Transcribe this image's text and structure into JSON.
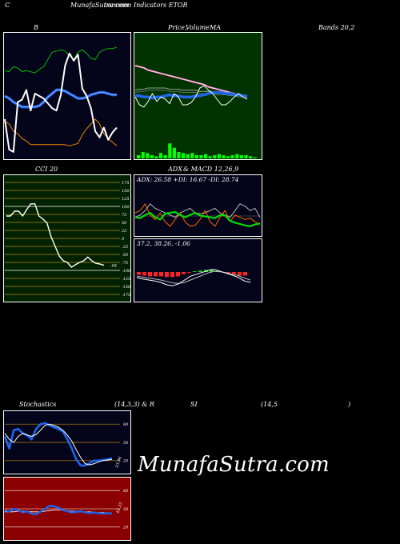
{
  "header": {
    "c_label": "C",
    "site_title": "MunafaSutra.com",
    "subtitle_overlap": "common Indicators ETOR"
  },
  "labels": {
    "bollinger_b": "B",
    "bollinger_bands": "Bands 20,2",
    "price_title_a": "Price,",
    "price_title_b": "Volume",
    "price_title_c": "MA",
    "cci": "CCI 20",
    "adx": "ADX",
    "macd": "& MACD 12,26,9",
    "stoch": "Stochastics",
    "stoch_params": "(14,3,3) & R",
    "rsi": "SI",
    "rsi_params": "(14,5",
    "rsi_close": ")"
  },
  "adx_readout": "ADX: 26.58  +DI: 16.67 -DI: 28.74",
  "macd_readout": "37.2,  38.26,  -1.06",
  "cci_last": "-84",
  "stoch_last": "23.96",
  "rsi_last": "42.25",
  "watermark": "MunafaSutra.com",
  "colors": {
    "panel_dark": "#04041a",
    "price_bg": "#003300",
    "cci_bg": "#002200",
    "rsi_bg": "#8b0000",
    "band_upper": "#00bb00",
    "band_lower": "#ee8800",
    "price_line": "#ffffff",
    "ma_blue": "#1e66ee",
    "volume": "#00ff00",
    "ma_pink": "#ff88cc",
    "adx_green": "#00dd00",
    "di_orange": "#ff6600"
  },
  "chart_data": [
    {
      "type": "line",
      "name_ref": "bollinger",
      "series": [
        {
          "key": "upper",
          "values": [
            71,
            70,
            74,
            73,
            70,
            71,
            70,
            69,
            72,
            74,
            80,
            86,
            87,
            88,
            87,
            83,
            80,
            86,
            88,
            85,
            81,
            80,
            86,
            88,
            89,
            89,
            90
          ]
        },
        {
          "key": "mid",
          "values": [
            50,
            48,
            45,
            43,
            41,
            41,
            41,
            41,
            42,
            45,
            49,
            52,
            55,
            55,
            54,
            52,
            50,
            48,
            48,
            49,
            51,
            52,
            53,
            53,
            52,
            51,
            51
          ]
        },
        {
          "key": "lower",
          "values": [
            29,
            27,
            21,
            19,
            15,
            13,
            10,
            10,
            10,
            10,
            10,
            10,
            10,
            10,
            10,
            9,
            10,
            11,
            18,
            23,
            27,
            31,
            27,
            19,
            15,
            12,
            9
          ]
        },
        {
          "key": "price",
          "values": [
            31,
            6,
            4,
            45,
            47,
            55,
            38,
            52,
            50,
            48,
            44,
            40,
            38,
            51,
            75,
            85,
            79,
            84,
            56,
            50,
            40,
            21,
            16,
            24,
            14,
            20,
            24
          ]
        }
      ],
      "ylim": [
        0,
        100
      ]
    },
    {
      "type": "line",
      "name_ref": "price_volume_ma",
      "series": [
        {
          "key": "pink_ma",
          "values": [
            70,
            69,
            68,
            66,
            65,
            64,
            63,
            62,
            61,
            60,
            59,
            58,
            57,
            56,
            55,
            54,
            53,
            51,
            50,
            49,
            48,
            47,
            46,
            45,
            44,
            43,
            42
          ]
        },
        {
          "key": "ma_grey",
          "values": [
            48,
            49,
            49,
            50,
            50,
            50,
            50,
            50,
            49,
            49,
            49,
            48,
            48,
            48,
            48,
            47,
            47,
            47,
            47,
            46,
            46,
            46,
            45,
            45,
            44,
            44,
            44
          ]
        },
        {
          "key": "blue_ma",
          "values": [
            43,
            43,
            42,
            42,
            41,
            42,
            42,
            43,
            44,
            43,
            43,
            42,
            42,
            42,
            43,
            43,
            44,
            45,
            46,
            46,
            46,
            45,
            45,
            44,
            44,
            43,
            43
          ]
        },
        {
          "key": "price",
          "values": [
            42,
            35,
            33,
            38,
            45,
            38,
            42,
            40,
            36,
            45,
            42,
            35,
            35,
            37,
            42,
            50,
            52,
            48,
            45,
            40,
            35,
            35,
            38,
            42,
            45,
            42,
            40
          ]
        }
      ],
      "volume": [
        3,
        6,
        5,
        3,
        2,
        5,
        3,
        14,
        10,
        6,
        5,
        4,
        5,
        3,
        3,
        4,
        2,
        3,
        4,
        3,
        2,
        3,
        4,
        3,
        3,
        2,
        1
      ]
    },
    {
      "type": "line",
      "name_ref": "cci",
      "ticks": [
        175,
        150,
        125,
        100,
        75,
        50,
        25,
        0,
        -25,
        -50,
        -75,
        -100,
        -125,
        -150,
        -175
      ],
      "values": [
        70,
        70,
        85,
        85,
        70,
        90,
        108,
        108,
        70,
        60,
        48,
        5,
        -25,
        -55,
        -70,
        -75,
        -90,
        -82,
        -75,
        -70,
        -58,
        -70,
        -78,
        -80,
        -84
      ],
      "ylim": [
        -190,
        190
      ]
    },
    {
      "type": "line",
      "name_ref": "adx",
      "series": [
        {
          "key": "adx",
          "values": [
            40,
            38,
            45,
            50,
            40,
            35,
            48,
            50,
            52,
            45,
            40,
            45,
            50,
            44,
            42,
            40,
            38,
            45,
            44,
            32,
            28,
            25,
            22,
            20,
            24,
            26
          ]
        },
        {
          "key": "plus_di",
          "values": [
            50,
            55,
            70,
            45,
            35,
            50,
            30,
            20,
            35,
            50,
            30,
            20,
            22,
            35,
            55,
            30,
            20,
            40,
            55,
            30,
            45,
            40,
            35,
            38,
            30,
            25
          ]
        },
        {
          "key": "minus_di",
          "values": [
            40,
            45,
            55,
            70,
            60,
            55,
            50,
            45,
            40,
            50,
            55,
            60,
            50,
            48,
            50,
            55,
            60,
            50,
            45,
            40,
            55,
            70,
            65,
            55,
            60,
            40
          ]
        }
      ],
      "ylim": [
        0,
        100
      ]
    },
    {
      "type": "line",
      "name_ref": "macd",
      "series": [
        {
          "key": "macd",
          "values": [
            45,
            42,
            40,
            38,
            35,
            30,
            28,
            32,
            40,
            48,
            52,
            56,
            60,
            62,
            58,
            54,
            50,
            45,
            38,
            35
          ]
        },
        {
          "key": "signal",
          "values": [
            48,
            46,
            44,
            42,
            40,
            37,
            34,
            33,
            35,
            40,
            45,
            50,
            55,
            58,
            57,
            55,
            52,
            49,
            44,
            40
          ]
        }
      ],
      "histogram": [
        -4,
        -5,
        -6,
        -6,
        -6,
        -7,
        -7,
        -6,
        -3,
        -1,
        1,
        2,
        3,
        4,
        2,
        0,
        -1,
        -3,
        -5,
        -5
      ]
    },
    {
      "type": "line",
      "name_ref": "stochastics",
      "ticks": [
        80,
        50,
        20
      ],
      "series": [
        {
          "key": "k",
          "values": [
            60,
            40,
            70,
            72,
            65,
            62,
            55,
            72,
            80,
            82,
            78,
            75,
            72,
            68,
            55,
            40,
            22,
            12,
            12,
            16,
            20,
            20,
            21,
            22,
            24
          ]
        },
        {
          "key": "d",
          "values": [
            65,
            55,
            50,
            60,
            65,
            62,
            60,
            63,
            70,
            78,
            80,
            78,
            75,
            70,
            62,
            52,
            38,
            25,
            15,
            13,
            15,
            18,
            20,
            21,
            22
          ]
        }
      ],
      "ylim": [
        0,
        100
      ]
    },
    {
      "type": "line",
      "name_ref": "rsi",
      "ticks": [
        80,
        50,
        20
      ],
      "series": [
        {
          "key": "rsi",
          "values": [
            48,
            45,
            50,
            48,
            44,
            46,
            42,
            41,
            45,
            50,
            55,
            54,
            52,
            48,
            46,
            44,
            45,
            46,
            44,
            43,
            44,
            43,
            42,
            43,
            42
          ]
        },
        {
          "key": "rsi_slow",
          "values": [
            45,
            45,
            45,
            46,
            46,
            46,
            45,
            45,
            45,
            46,
            47,
            48,
            48,
            48,
            47,
            46,
            46,
            45,
            45,
            45,
            44,
            44,
            44,
            43,
            43
          ]
        }
      ],
      "ylim": [
        0,
        100
      ]
    }
  ]
}
